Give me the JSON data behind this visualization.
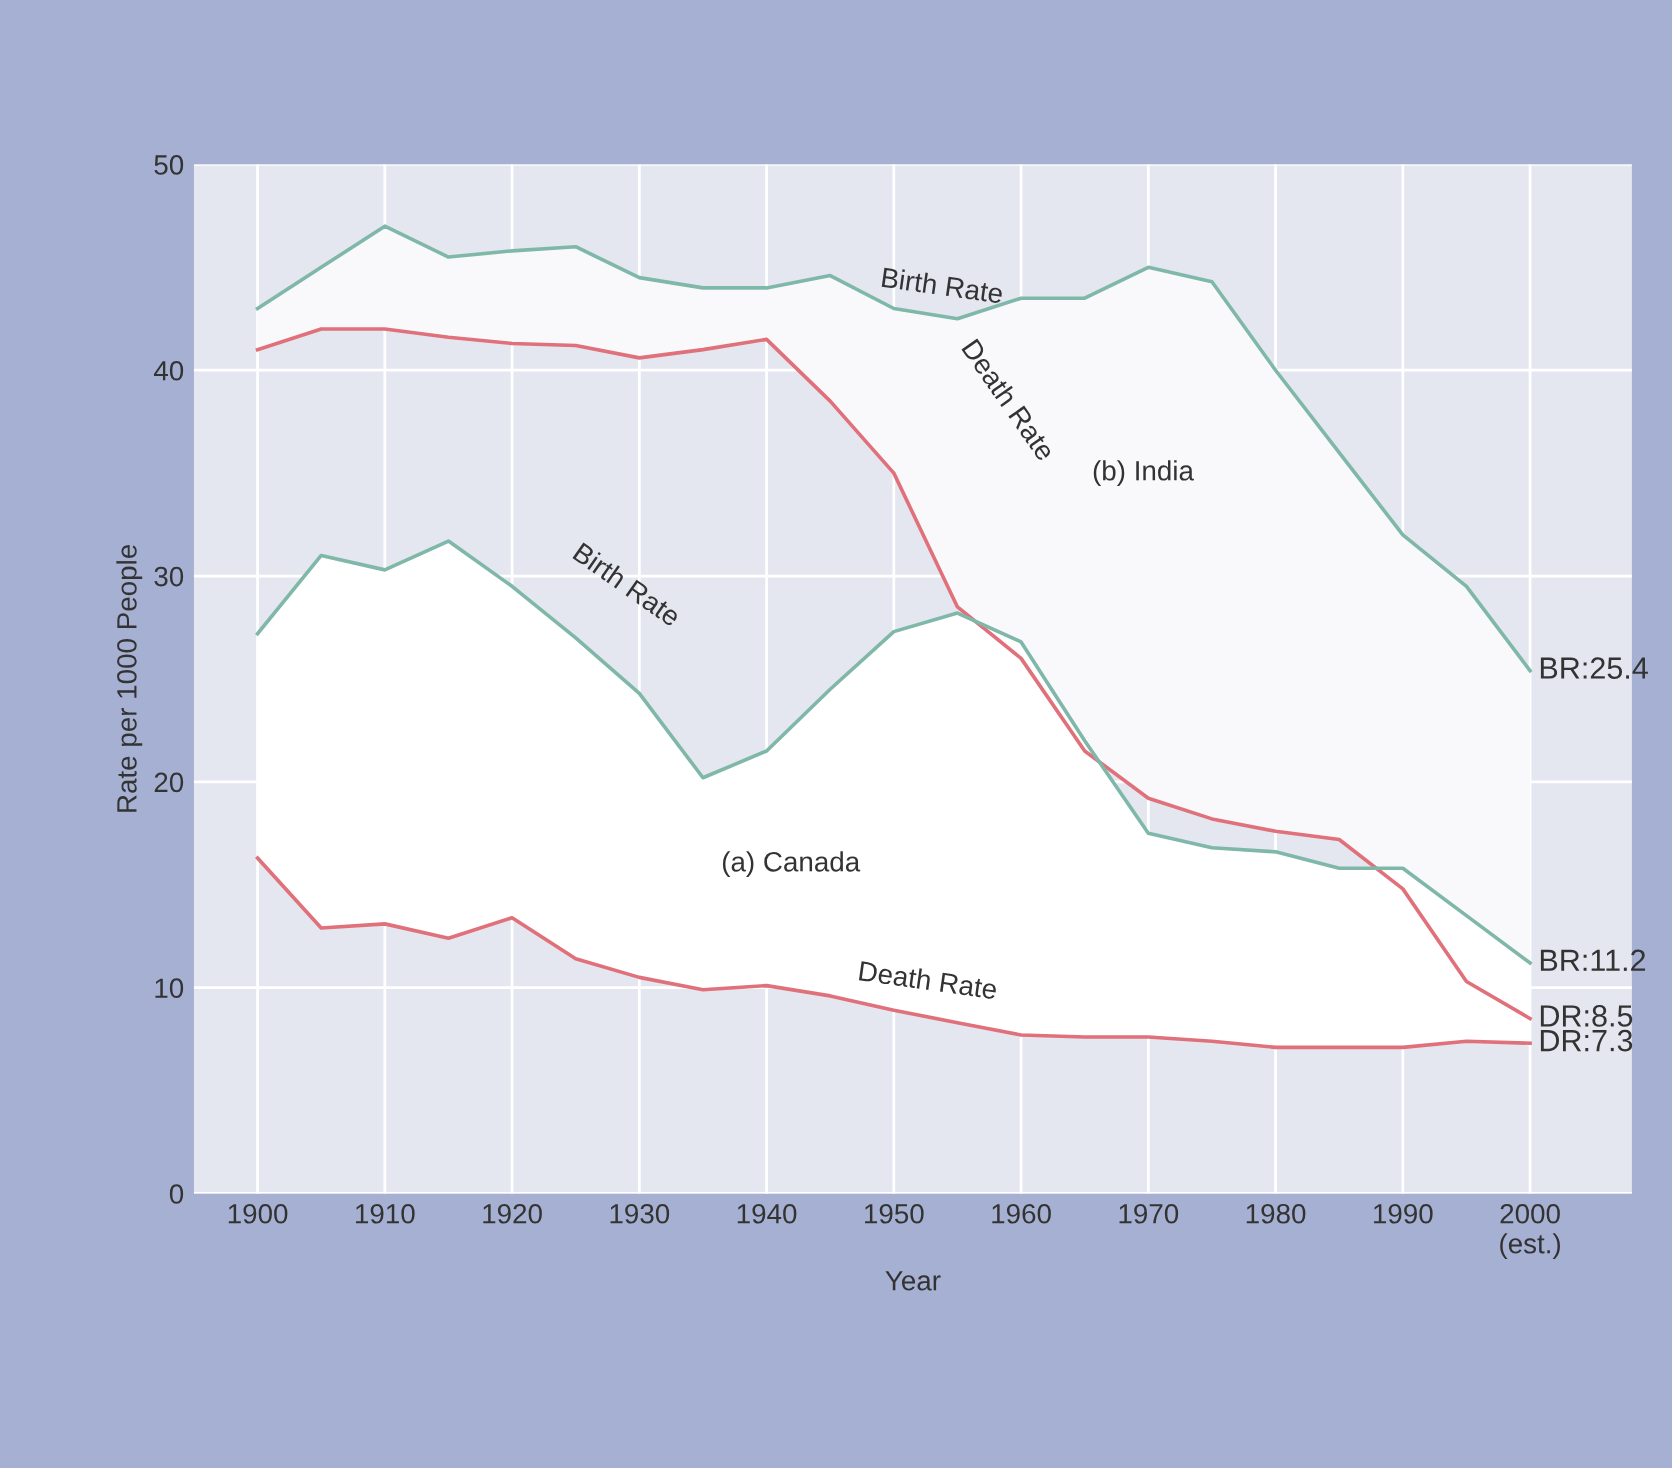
{
  "chart_data": {
    "type": "line",
    "xlabel": "Year",
    "ylabel": "Rate per 1000 People",
    "x": [
      1900,
      1905,
      1910,
      1915,
      1920,
      1925,
      1930,
      1935,
      1940,
      1945,
      1950,
      1955,
      1960,
      1965,
      1970,
      1975,
      1980,
      1985,
      1990,
      1995,
      2000
    ],
    "series": [
      {
        "color": "#7fb8a8",
        "values": [
          43,
          45,
          47,
          45.5,
          45.8,
          46,
          44.5,
          44,
          44,
          44.6,
          43,
          42.5,
          43.5,
          43.5,
          45,
          44.3,
          40,
          36,
          32,
          29.5,
          25.4
        ],
        "value_labels": [
          null,
          null,
          null,
          null,
          null,
          null,
          null,
          null,
          null,
          null,
          null,
          null,
          null,
          null,
          null,
          null,
          null,
          null,
          null,
          null,
          "BR:25.4"
        ],
        "upper": [
          43,
          45,
          47,
          45.5,
          45.8,
          46,
          44.5,
          44,
          44,
          44.6,
          43,
          42.5,
          43.5,
          43.5,
          45,
          44.3,
          40,
          36,
          32,
          29.5,
          25.4
        ],
        "lower": [
          41,
          42,
          42,
          41.6,
          41.3,
          41.2,
          40.6,
          41,
          41.5,
          38.5,
          35,
          28.5,
          26,
          21.5,
          19.2,
          18.2,
          17.6,
          17.2,
          14.8,
          10.3,
          8.5
        ]
      },
      {
        "color": "#e0707a",
        "values": [
          41,
          42,
          42,
          41.6,
          41.3,
          41.2,
          40.6,
          41,
          41.5,
          38.5,
          35,
          28.5,
          26,
          21.5,
          19.2,
          18.2,
          17.6,
          17.2,
          14.8,
          10.3,
          8.5
        ],
        "value_labels": [
          null,
          null,
          null,
          null,
          null,
          null,
          null,
          null,
          null,
          null,
          null,
          null,
          null,
          null,
          null,
          null,
          null,
          null,
          null,
          null,
          "DR:8.5"
        ]
      },
      {
        "color": "#7fb8a8",
        "values": [
          27.2,
          31,
          30.3,
          31.7,
          29.5,
          27,
          24.3,
          20.2,
          21.5,
          24.5,
          27.3,
          28.2,
          26.8,
          22,
          17.5,
          16.8,
          16.6,
          15.8,
          15.8,
          13.5,
          11.2
        ],
        "value_labels": [
          null,
          null,
          null,
          null,
          null,
          null,
          null,
          null,
          null,
          null,
          null,
          null,
          null,
          null,
          null,
          null,
          null,
          null,
          null,
          null,
          "BR:11.2"
        ],
        "upper": [
          27.2,
          31,
          30.3,
          31.7,
          29.5,
          27,
          24.3,
          20.2,
          21.5,
          24.5,
          27.3,
          28.2,
          26.8,
          22,
          17.5,
          16.8,
          16.6,
          15.8,
          15.8,
          13.5,
          11.2
        ],
        "lower": [
          16.3,
          12.9,
          13.1,
          12.4,
          13.4,
          11.4,
          10.5,
          9.9,
          10.1,
          9.6,
          8.9,
          8.3,
          7.7,
          7.6,
          7.6,
          7.4,
          7.1,
          7.1,
          7.1,
          7.4,
          7.3
        ]
      },
      {
        "color": "#e0707a",
        "values": [
          16.3,
          12.9,
          13.1,
          12.4,
          13.4,
          11.4,
          10.5,
          9.9,
          10.1,
          9.6,
          8.9,
          8.3,
          7.7,
          7.6,
          7.6,
          7.4,
          7.1,
          7.1,
          7.1,
          7.4,
          7.3
        ],
        "value_labels": [
          null,
          null,
          null,
          null,
          null,
          null,
          null,
          null,
          null,
          null,
          null,
          null,
          null,
          null,
          null,
          null,
          null,
          null,
          null,
          null,
          "DR:7.3"
        ]
      }
    ],
    "xlim": [
      1895,
      2008
    ],
    "ylim": [
      0,
      50
    ],
    "xticks": [
      1900,
      1910,
      1920,
      1930,
      1940,
      1950,
      1960,
      1970,
      1980,
      1990,
      {
        "value": 2000,
        "label": "2000\n(est.)"
      }
    ],
    "yticks": [
      0,
      10,
      20,
      30,
      40,
      50
    ],
    "grid": true,
    "annotations": [
      "Birth Rate",
      "Death Rate",
      "(b) India",
      "Birth Rate",
      "(a) Canada",
      "Death Rate"
    ]
  }
}
